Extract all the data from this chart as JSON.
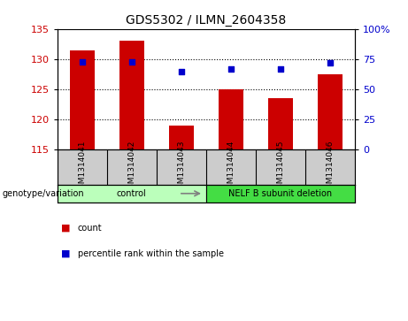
{
  "title": "GDS5302 / ILMN_2604358",
  "samples": [
    "GSM1314041",
    "GSM1314042",
    "GSM1314043",
    "GSM1314044",
    "GSM1314045",
    "GSM1314046"
  ],
  "count_values": [
    131.5,
    133.0,
    119.0,
    125.0,
    123.5,
    127.5
  ],
  "percentile_values": [
    73,
    73,
    65,
    67,
    67,
    72
  ],
  "ylim_left": [
    115,
    135
  ],
  "ylim_right": [
    0,
    100
  ],
  "yticks_left": [
    115,
    120,
    125,
    130,
    135
  ],
  "yticks_right": [
    0,
    25,
    50,
    75,
    100
  ],
  "bar_color": "#cc0000",
  "dot_color": "#0000cc",
  "groups": [
    {
      "label": "control",
      "indices": [
        0,
        1,
        2
      ],
      "color": "#bbffbb"
    },
    {
      "label": "NELF B subunit deletion",
      "indices": [
        3,
        4,
        5
      ],
      "color": "#44dd44"
    }
  ],
  "genotype_label": "genotype/variation",
  "legend_count": "count",
  "legend_percentile": "percentile rank within the sample",
  "sample_bg_color": "#cccccc",
  "plot_bg": "#ffffff",
  "grid_yticks": [
    120,
    125,
    130
  ],
  "bar_width": 0.5
}
